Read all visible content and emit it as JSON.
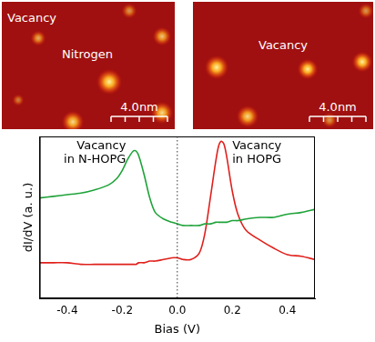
{
  "images": [
    {
      "labels": [
        "Vacancy",
        "Nitrogen"
      ],
      "scale_bar": "4.0nm"
    },
    {
      "labels": [
        "Vacancy"
      ],
      "scale_bar": "4.0nm"
    }
  ],
  "chart_data": {
    "type": "line",
    "x_label": "Bias (V)",
    "y_label": "dI/dV (a. u.)",
    "x": [
      -0.5,
      -0.45,
      -0.4,
      -0.35,
      -0.3,
      -0.25,
      -0.22,
      -0.2,
      -0.18,
      -0.16,
      -0.15,
      -0.14,
      -0.12,
      -0.1,
      -0.08,
      -0.05,
      -0.02,
      0,
      0.02,
      0.05,
      0.08,
      0.1,
      0.12,
      0.14,
      0.15,
      0.16,
      0.17,
      0.18,
      0.2,
      0.22,
      0.25,
      0.3,
      0.35,
      0.4,
      0.45,
      0.5
    ],
    "series": [
      {
        "name": "Vacancy in N-HOPG",
        "color": "#1fa33a",
        "values": [
          0.62,
          0.63,
          0.64,
          0.65,
          0.67,
          0.7,
          0.74,
          0.79,
          0.86,
          0.91,
          0.91,
          0.88,
          0.76,
          0.62,
          0.53,
          0.49,
          0.47,
          0.46,
          0.45,
          0.45,
          0.45,
          0.46,
          0.46,
          0.47,
          0.47,
          0.47,
          0.47,
          0.47,
          0.48,
          0.48,
          0.49,
          0.5,
          0.5,
          0.52,
          0.53,
          0.55
        ]
      },
      {
        "name": "Vacancy in HOPG",
        "color": "#e0201c",
        "values": [
          0.22,
          0.22,
          0.22,
          0.21,
          0.21,
          0.21,
          0.21,
          0.21,
          0.21,
          0.21,
          0.21,
          0.22,
          0.22,
          0.23,
          0.23,
          0.24,
          0.25,
          0.25,
          0.24,
          0.24,
          0.28,
          0.4,
          0.62,
          0.85,
          0.94,
          0.97,
          0.95,
          0.87,
          0.66,
          0.52,
          0.42,
          0.36,
          0.31,
          0.27,
          0.26,
          0.24
        ]
      }
    ],
    "xlim": [
      -0.5,
      0.5
    ],
    "xticks": [
      -0.4,
      -0.2,
      {
        "value": 0,
        "label": "0.0"
      },
      0.2,
      0.4
    ],
    "ylim": [
      0,
      1
    ],
    "tick_labels": "x",
    "grid": false,
    "annotations": [
      {
        "x": 0,
        "line_style": "dotted"
      }
    ]
  }
}
